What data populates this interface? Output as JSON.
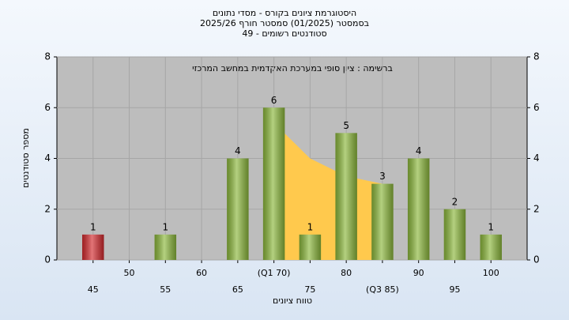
{
  "chart_data": {
    "type": "bar",
    "title_lines": [
      "היסטוגרמת ציונים בקורס - מסדי נתונים",
      "בסמסטר  (01/2025)  סמסטר חורף 2025/26",
      "סטודנטים רשומים - 49"
    ],
    "annotation": "ברשימה : ציון סופי במערכת האקדמית במחשב המרכזי",
    "x_label": "טווח ציונים",
    "y_label": "מספר סטודנטים",
    "x": [
      45,
      55,
      65,
      70,
      75,
      80,
      85,
      90,
      95,
      100
    ],
    "values": [
      1,
      1,
      4,
      6,
      1,
      5,
      3,
      4,
      2,
      1
    ],
    "bar_colors": [
      "#d42a2e",
      "#8cb83c",
      "#8cb83c",
      "#8cb83c",
      "#8cb83c",
      "#8cb83c",
      "#8cb83c",
      "#8cb83c",
      "#8cb83c",
      "#8cb83c"
    ],
    "area": {
      "x": [
        70,
        75,
        80,
        85
      ],
      "values": [
        5.4,
        4,
        3.3,
        3
      ],
      "color": "#ffc94d"
    },
    "xlim": [
      40,
      105
    ],
    "xticks": [
      45,
      50,
      55,
      60,
      65,
      {
        "value": 70,
        "label": "(Q1 70)"
      },
      75,
      80,
      {
        "value": 85,
        "label": "(Q3 85)"
      },
      90,
      95,
      100
    ],
    "ylim": [
      0,
      8
    ],
    "yticks": [
      0,
      2,
      4,
      6,
      8
    ],
    "y2lim": [
      0,
      8
    ],
    "y2ticks": [
      0,
      2,
      4,
      6,
      8
    ],
    "grid": true
  }
}
